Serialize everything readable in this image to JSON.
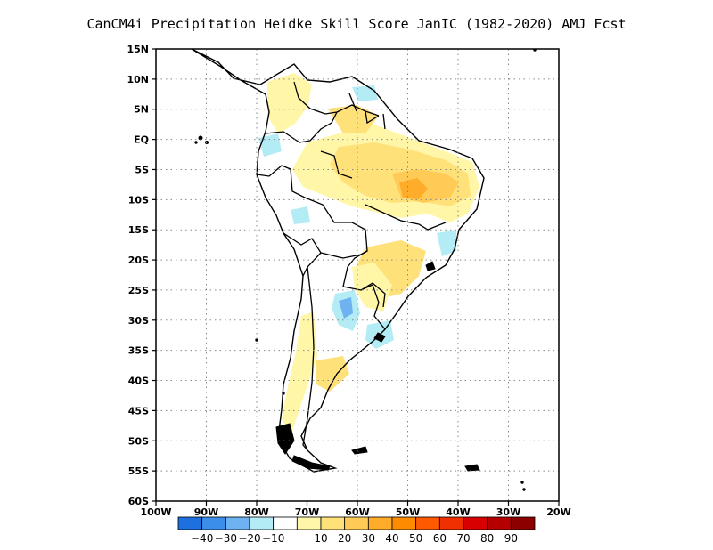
{
  "title": "CanCM4i  Precipitation Heidke Skill Score JanIC (1982-2020) AMJ Fcst",
  "map": {
    "lon_range": [
      -100,
      -20
    ],
    "lat_range": [
      -60,
      15
    ],
    "lat_ticks": [
      "15N",
      "10N",
      "5N",
      "EQ",
      "5S",
      "10S",
      "15S",
      "20S",
      "25S",
      "30S",
      "35S",
      "40S",
      "45S",
      "50S",
      "55S",
      "60S"
    ],
    "lon_ticks": [
      "100W",
      "90W",
      "80W",
      "70W",
      "60W",
      "50W",
      "40W",
      "30W",
      "20W"
    ],
    "grid": "dotted",
    "land_outline_color": "#000000"
  },
  "colorbar": {
    "colors": [
      "#1e6fe0",
      "#3c8eeb",
      "#6fb2f2",
      "#b4ecf6",
      "#ffffff",
      "#fff6a8",
      "#ffe17a",
      "#ffca55",
      "#ffac2a",
      "#ff8c00",
      "#ff5a00",
      "#f03000",
      "#d80000",
      "#b40000",
      "#8c0000"
    ],
    "labels": [
      "-40",
      "-30",
      "-20",
      "-10",
      "10",
      "20",
      "30",
      "40",
      "50",
      "60",
      "70",
      "80",
      "90"
    ]
  }
}
